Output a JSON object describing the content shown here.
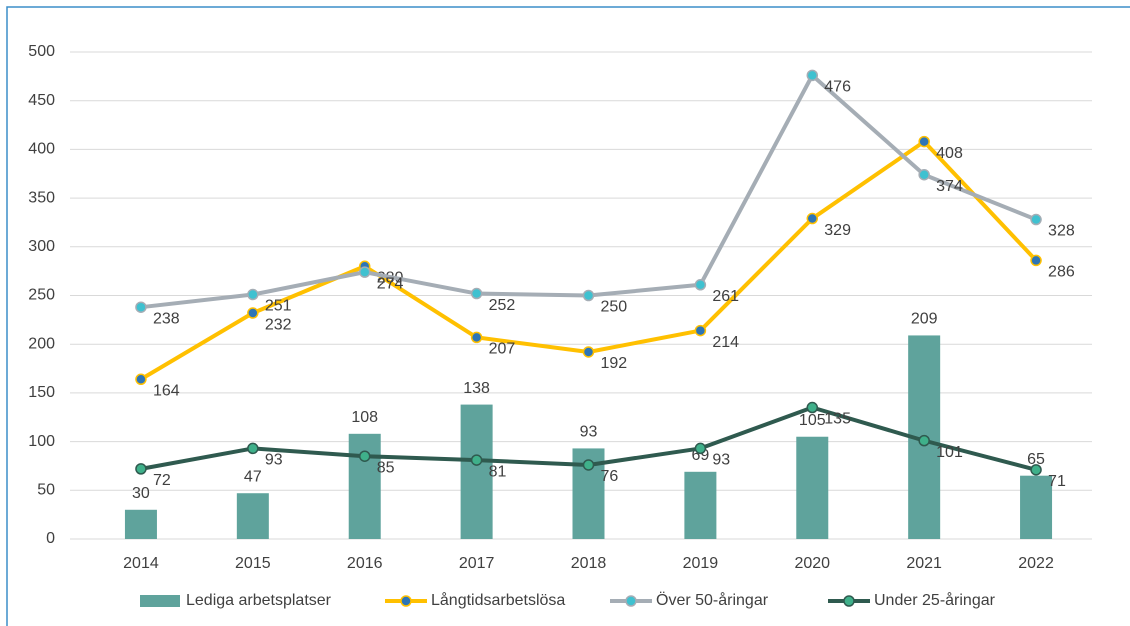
{
  "chart_data": {
    "type": "bar",
    "categories": [
      "2014",
      "2015",
      "2016",
      "2017",
      "2018",
      "2019",
      "2020",
      "2021",
      "2022"
    ],
    "series": [
      {
        "name": "Lediga arbetsplatser",
        "type": "bar",
        "color": "#5fa39c",
        "values": [
          30,
          47,
          108,
          138,
          93,
          69,
          105,
          209,
          65
        ]
      },
      {
        "name": "Långtidsarbetslösa",
        "type": "line",
        "color": "#ffc000",
        "marker_color": "#2e75b6",
        "values": [
          164,
          232,
          280,
          207,
          192,
          214,
          329,
          408,
          286
        ]
      },
      {
        "name": "Över 50-åringar",
        "type": "line",
        "color": "#a5adb5",
        "marker_color": "#3fc1d0",
        "values": [
          238,
          251,
          274,
          252,
          250,
          261,
          476,
          374,
          328
        ]
      },
      {
        "name": "Under 25-åringar",
        "type": "line",
        "color": "#2f5a4f",
        "marker_color": "#3fb08a",
        "values": [
          72,
          93,
          85,
          81,
          76,
          93,
          135,
          101,
          71
        ]
      }
    ],
    "ylim": [
      0,
      500
    ],
    "yticks": [
      0,
      50,
      100,
      150,
      200,
      250,
      300,
      350,
      400,
      450,
      500
    ],
    "grid": true,
    "legend": "bottom"
  }
}
